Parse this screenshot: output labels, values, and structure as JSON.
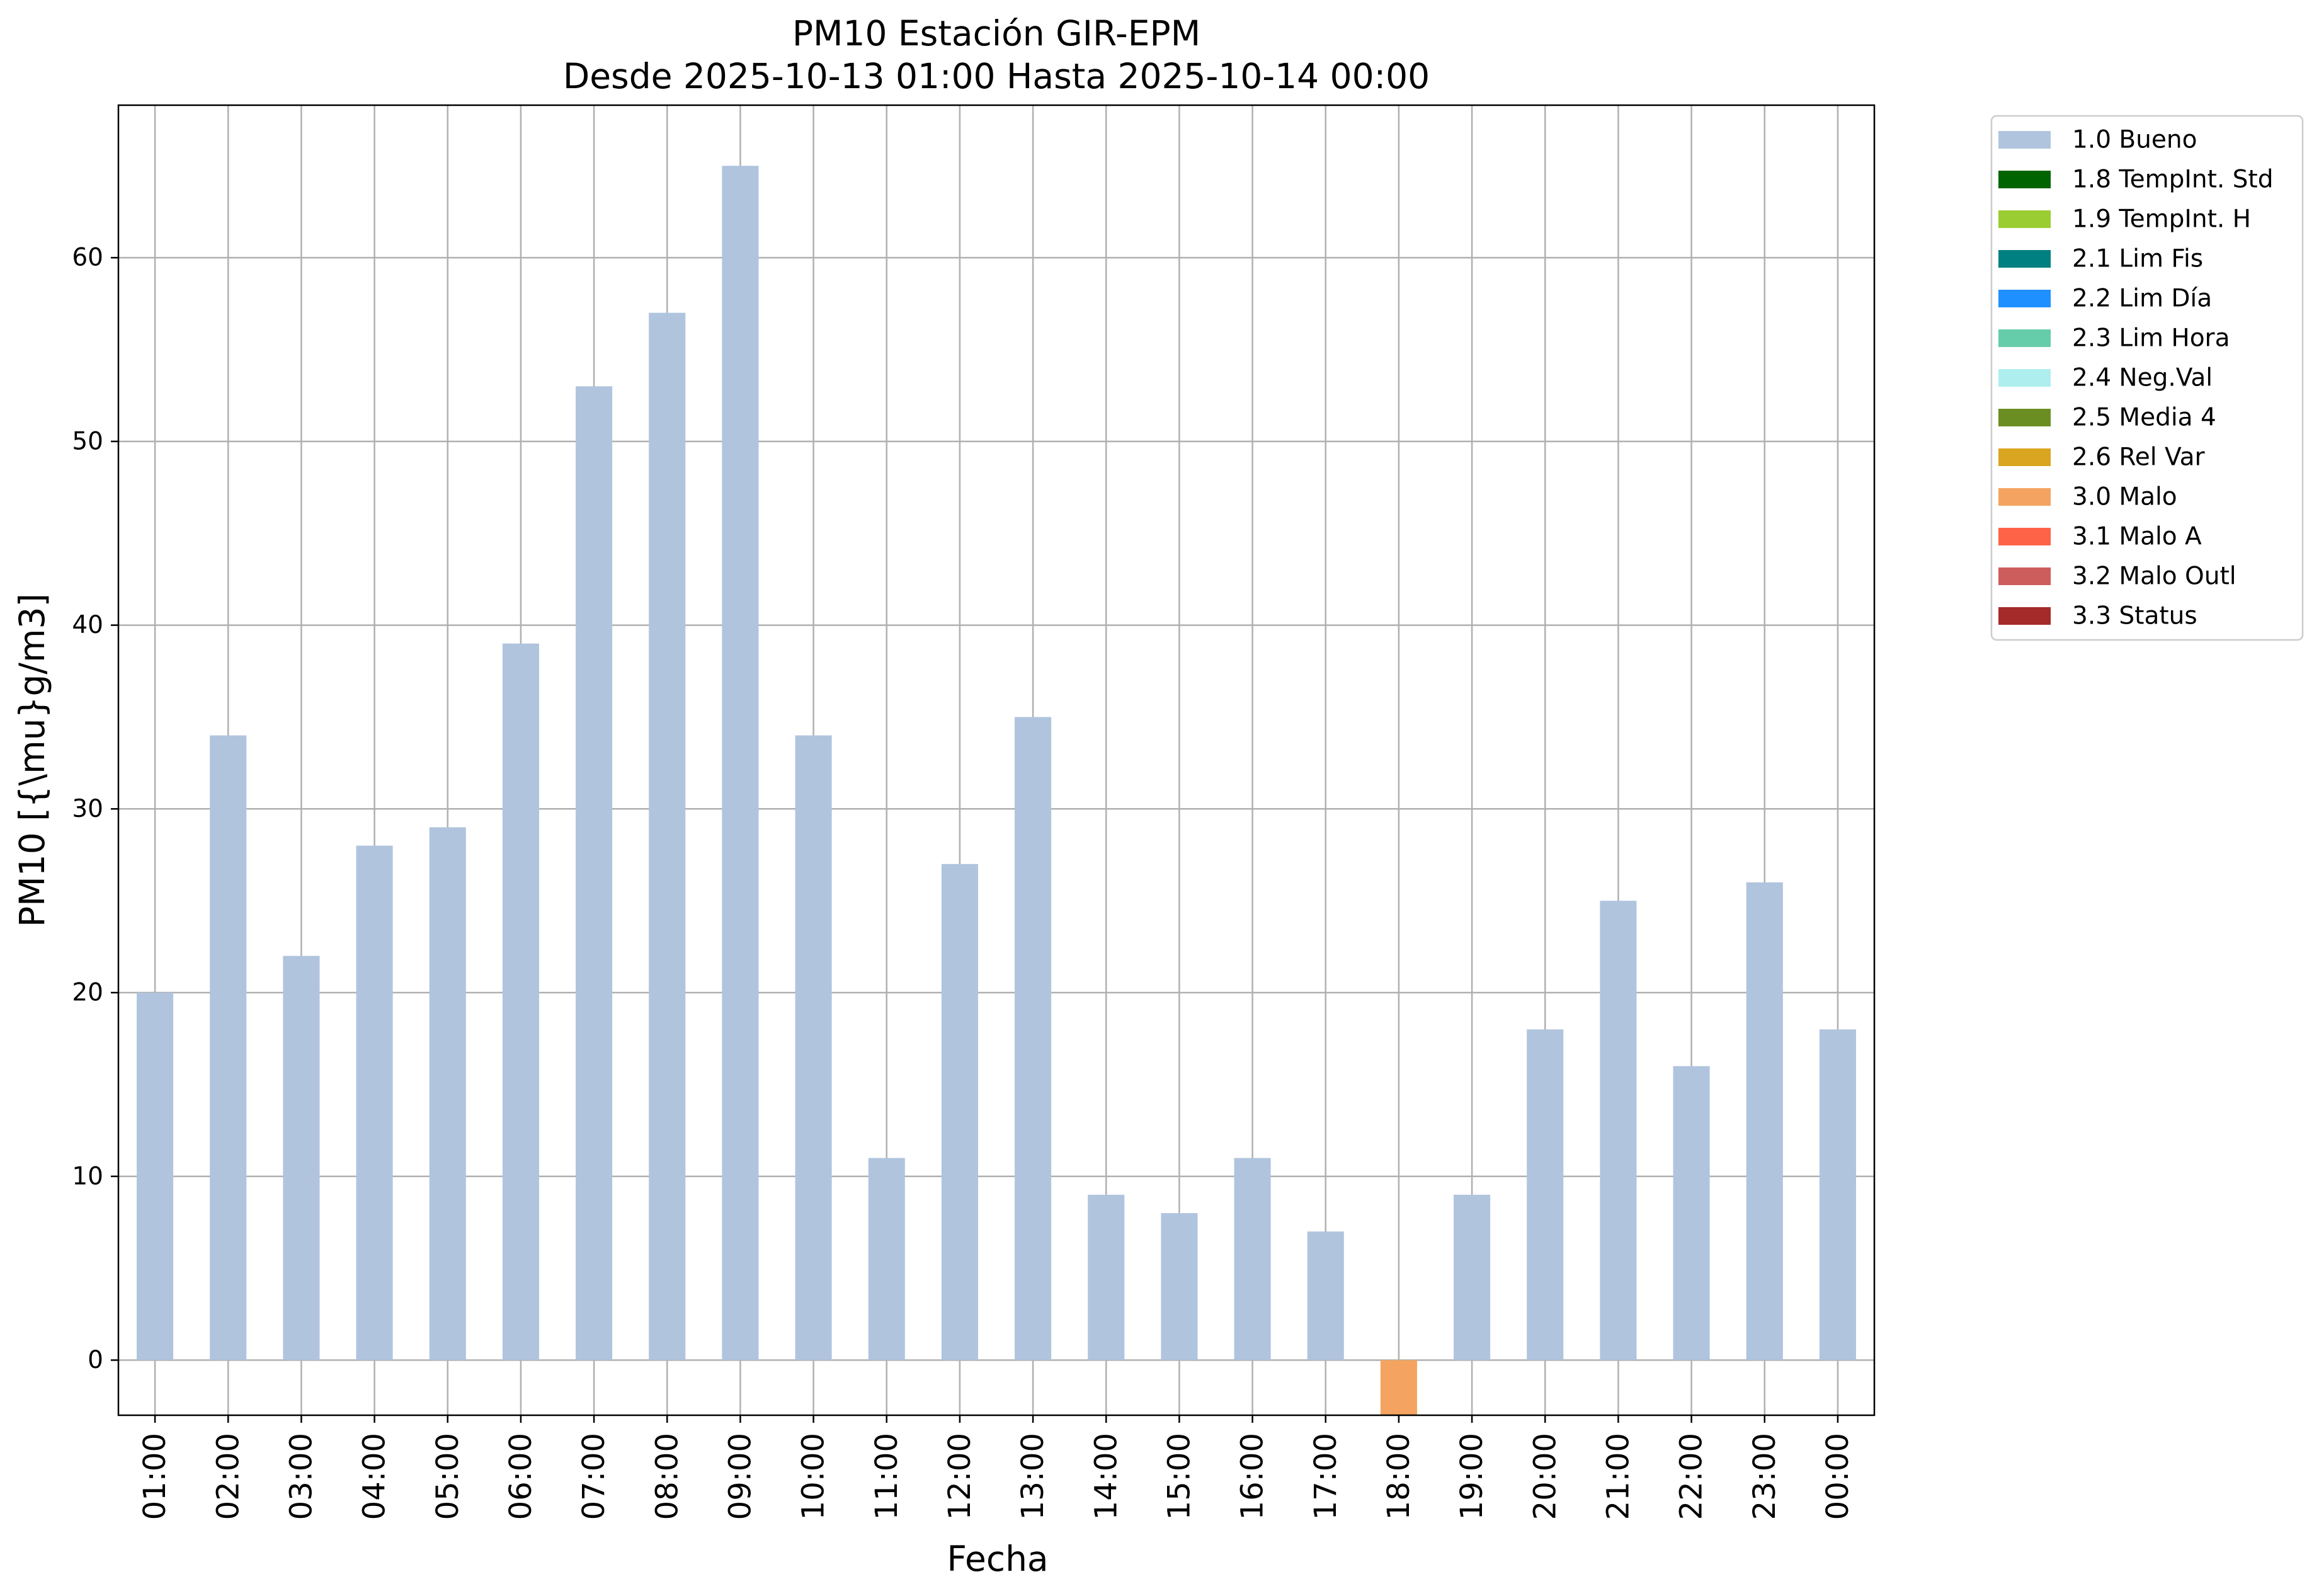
{
  "chart_data": {
    "type": "bar",
    "title": [
      "PM10 Estación GIR-EPM",
      "Desde 2025-10-13 01:00 Hasta 2025-10-14 00:00"
    ],
    "xlabel": "Fecha",
    "ylabel": "PM10 [{\\mu}g/m3]",
    "ylim": [
      -3,
      68.3
    ],
    "yticks": [
      0,
      10,
      20,
      30,
      40,
      50,
      60
    ],
    "grid": true,
    "legend_position": "outside-right-top",
    "categories": [
      "01:00",
      "02:00",
      "03:00",
      "04:00",
      "05:00",
      "06:00",
      "07:00",
      "08:00",
      "09:00",
      "10:00",
      "11:00",
      "12:00",
      "13:00",
      "14:00",
      "15:00",
      "16:00",
      "17:00",
      "18:00",
      "19:00",
      "20:00",
      "21:00",
      "22:00",
      "23:00",
      "00:00"
    ],
    "values": [
      20,
      34,
      22,
      28,
      29,
      39,
      53,
      57,
      65,
      34,
      11,
      27,
      35,
      9,
      8,
      11,
      7,
      -3,
      9,
      18,
      25,
      16,
      26,
      18
    ],
    "bar_quality": [
      "1.0",
      "1.0",
      "1.0",
      "1.0",
      "1.0",
      "1.0",
      "1.0",
      "1.0",
      "1.0",
      "1.0",
      "1.0",
      "1.0",
      "1.0",
      "1.0",
      "1.0",
      "1.0",
      "1.0",
      "3.0",
      "1.0",
      "1.0",
      "1.0",
      "1.0",
      "1.0",
      "1.0"
    ],
    "legend": [
      {
        "code": "1.0",
        "label": "1.0 Bueno",
        "color": "#b0c4de"
      },
      {
        "code": "1.8",
        "label": "1.8 TempInt. Std",
        "color": "#006400"
      },
      {
        "code": "1.9",
        "label": "1.9 TempInt. H",
        "color": "#9acd32"
      },
      {
        "code": "2.1",
        "label": "2.1 Lim Fis",
        "color": "#008080"
      },
      {
        "code": "2.2",
        "label": "2.2 Lim Día",
        "color": "#1e90ff"
      },
      {
        "code": "2.3",
        "label": "2.3 Lim Hora",
        "color": "#66cdaa"
      },
      {
        "code": "2.4",
        "label": "2.4 Neg.Val",
        "color": "#afeeee"
      },
      {
        "code": "2.5",
        "label": "2.5 Media 4",
        "color": "#6b8e23"
      },
      {
        "code": "2.6",
        "label": "2.6 Rel Var",
        "color": "#daa520"
      },
      {
        "code": "3.0",
        "label": "3.0 Malo",
        "color": "#f4a460"
      },
      {
        "code": "3.1",
        "label": "3.1 Malo A",
        "color": "#ff6347"
      },
      {
        "code": "3.2",
        "label": "3.2 Malo Outl",
        "color": "#cd5c5c"
      },
      {
        "code": "3.3",
        "label": "3.3 Status",
        "color": "#a52a2a"
      }
    ]
  }
}
